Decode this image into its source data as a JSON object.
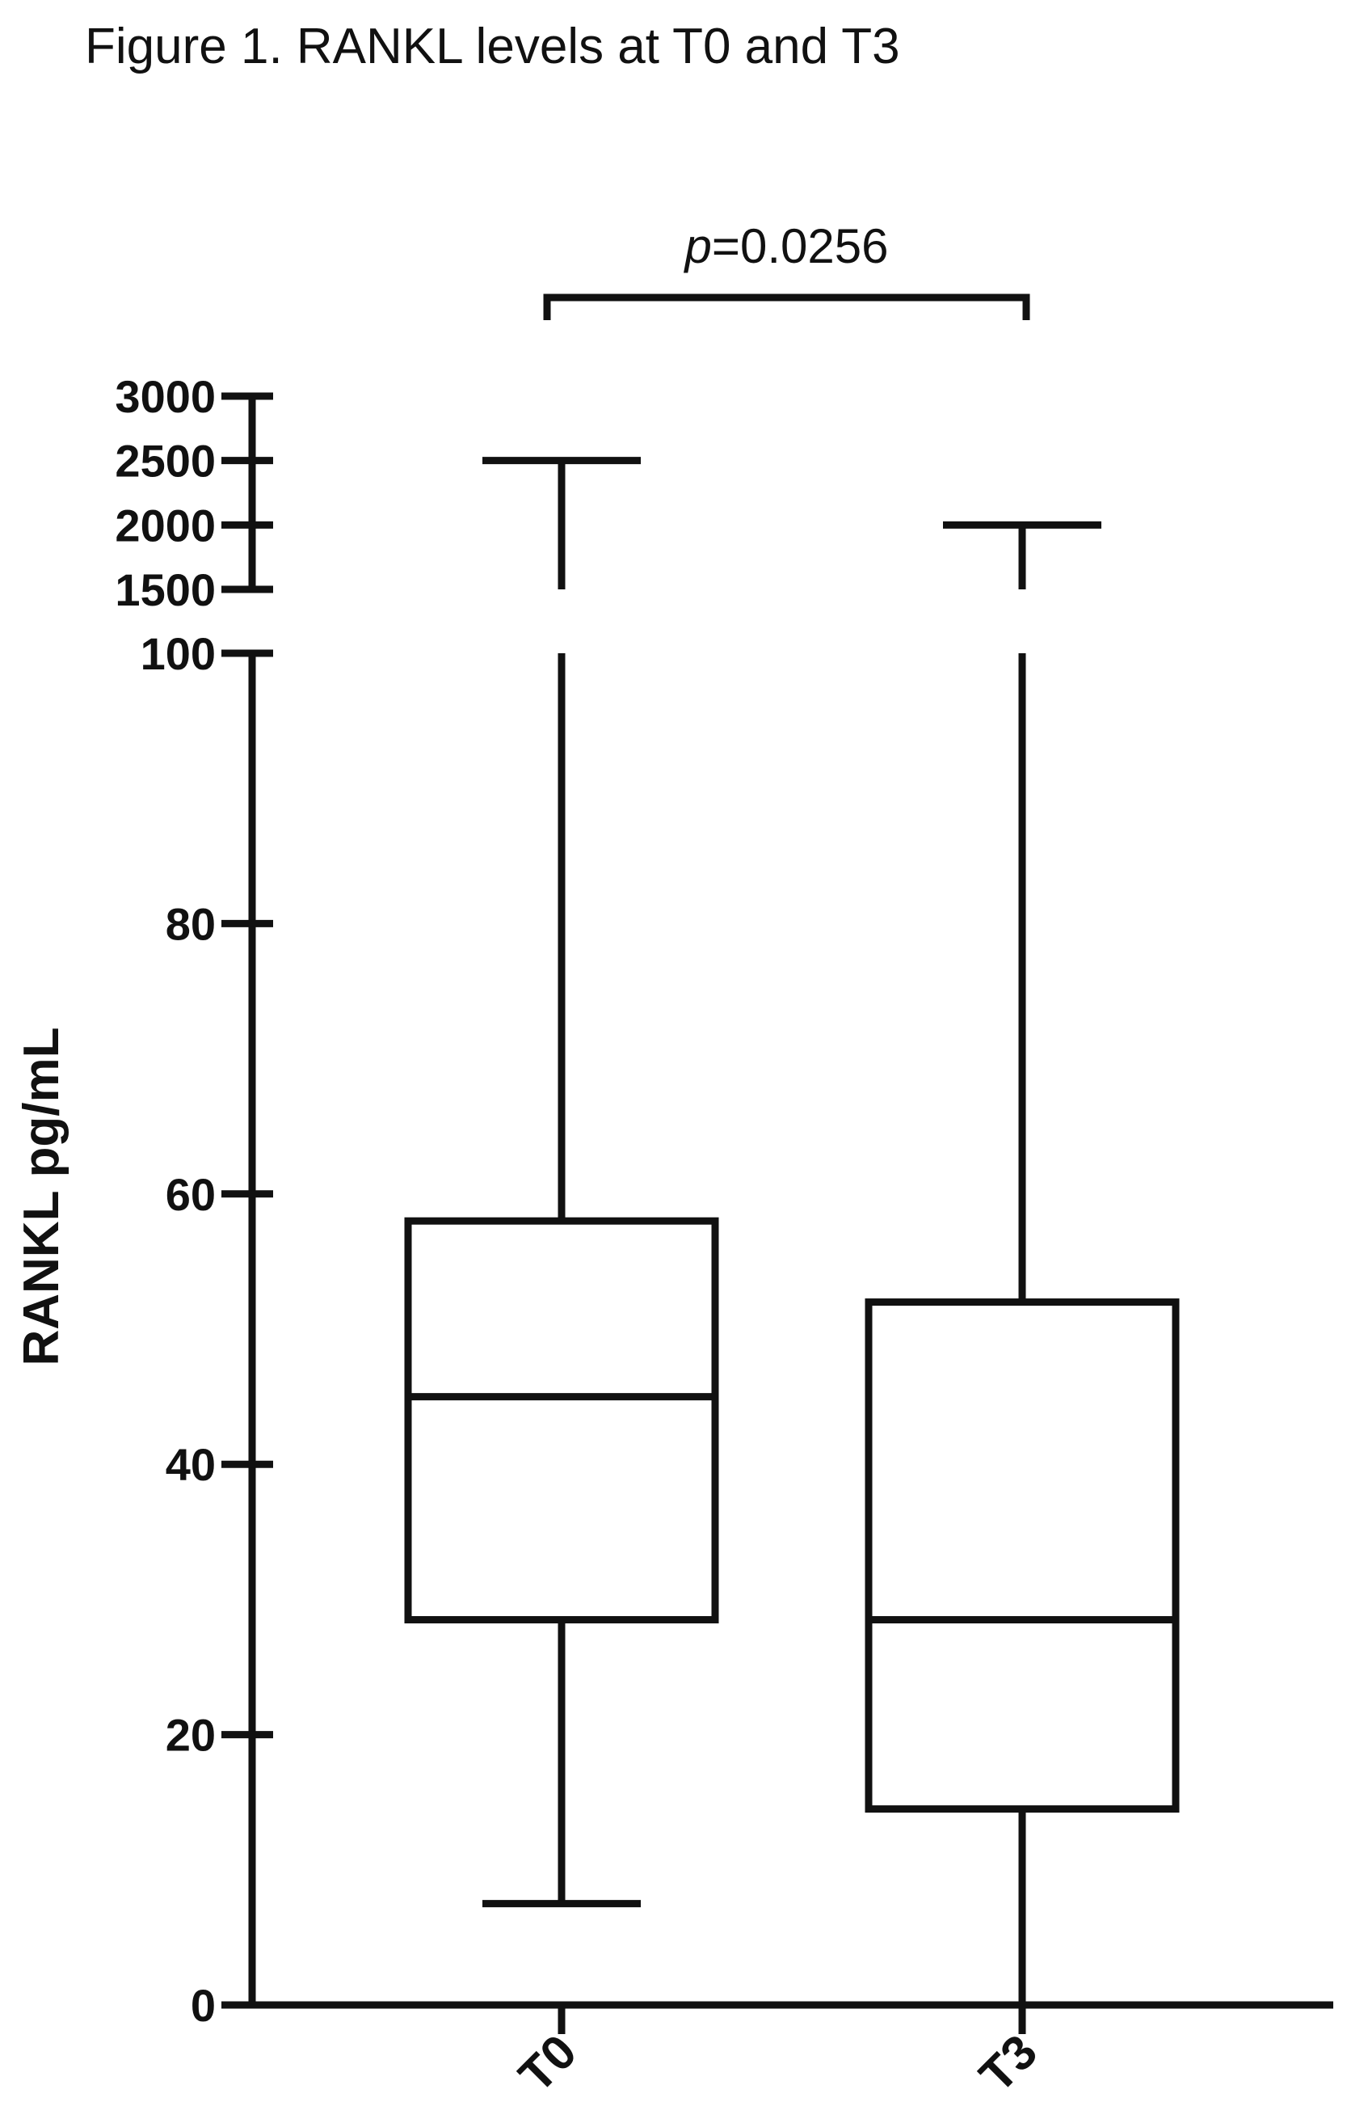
{
  "chart_data": {
    "type": "box",
    "title": "Figure 1. RANKL levels at T0 and T3",
    "ylabel": "RANKL pg/mL",
    "xlabel": "",
    "y_axis_segments": [
      {
        "range": [
          0,
          100
        ],
        "ticks": [
          0,
          20,
          40,
          60,
          80,
          100
        ],
        "tick_labels": [
          "0",
          "20",
          "40",
          "60",
          "80",
          "100"
        ]
      },
      {
        "range": [
          1500,
          3000
        ],
        "ticks": [
          1500,
          2000,
          2500,
          3000
        ],
        "tick_labels": [
          "1500",
          "2000",
          "2500",
          "3000"
        ]
      }
    ],
    "categories": [
      "T0",
      "T3"
    ],
    "boxes": [
      {
        "category": "T0",
        "whisker_low": 7.5,
        "q1": 28.5,
        "median": 45,
        "q3": 58,
        "whisker_high": 2500
      },
      {
        "category": "T3",
        "whisker_low": 0,
        "q1": 14.5,
        "median": 28.5,
        "q3": 52,
        "whisker_high": 2000
      }
    ],
    "annotations": [
      {
        "text_italic": "p",
        "text": "=0.0256",
        "between": [
          "T0",
          "T3"
        ]
      }
    ],
    "grid": false,
    "legend": "none"
  }
}
